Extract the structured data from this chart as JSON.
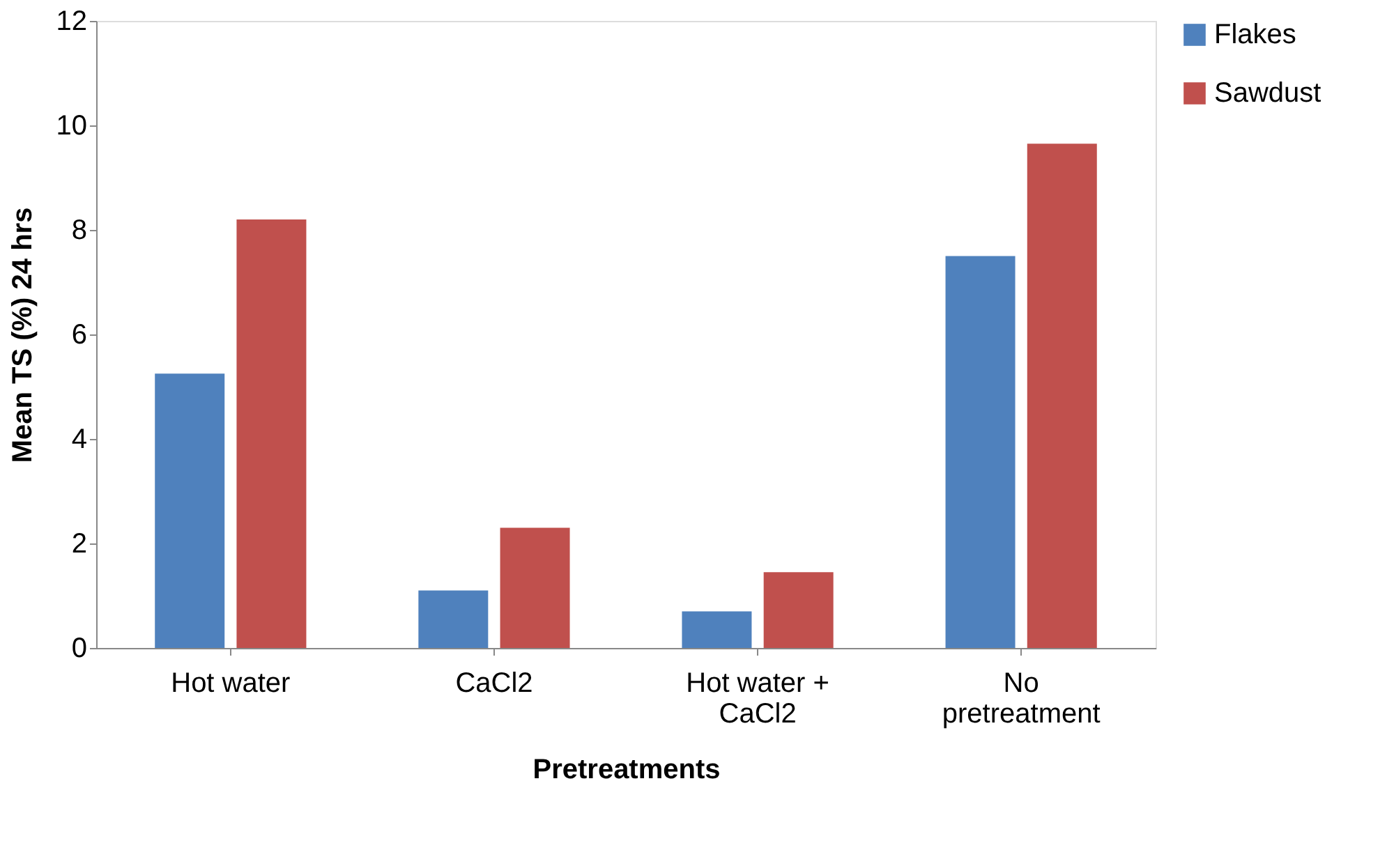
{
  "chart_data": {
    "type": "bar",
    "xlabel": "Pretreatments",
    "ylabel": "Mean TS (%) 24 hrs",
    "categories": [
      "Hot water",
      "CaCl2",
      "Hot water + CaCl2",
      "No pretreatment"
    ],
    "series": [
      {
        "name": "Flakes",
        "color": "#4f81bd",
        "values": [
          5.25,
          1.1,
          0.7,
          7.5
        ]
      },
      {
        "name": "Sawdust",
        "color": "#c0504d",
        "values": [
          8.2,
          2.3,
          1.45,
          9.65
        ]
      }
    ],
    "ylim": [
      0,
      12
    ],
    "yticks": [
      0,
      2,
      4,
      6,
      8,
      10,
      12
    ],
    "grid": false,
    "legend": "right"
  }
}
